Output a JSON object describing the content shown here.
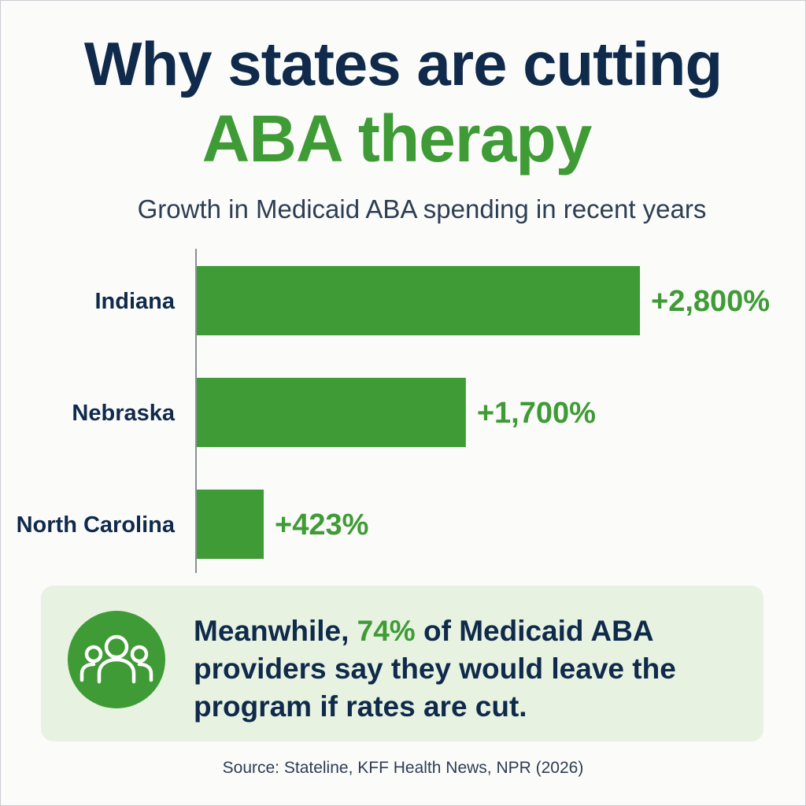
{
  "title": {
    "line1": "Why states are cutting",
    "line2": "ABA therapy"
  },
  "subtitle": "Growth in Medicaid ABA spending in recent years",
  "chart_data": {
    "type": "bar",
    "orientation": "horizontal",
    "title": "Growth in Medicaid ABA spending in recent years",
    "categories": [
      "Indiana",
      "Nebraska",
      "North Carolina"
    ],
    "values": [
      2800,
      1700,
      423
    ],
    "value_labels": [
      "+2,800%",
      "+1,700%",
      "+423%"
    ],
    "unit": "%",
    "xlim": [
      0,
      2800
    ],
    "grid": false,
    "legend": "none",
    "bar_color": "#3f9b35"
  },
  "callout": {
    "text_before": "Meanwhile, ",
    "highlight": "74%",
    "text_after": " of Medicaid ABA providers say they would leave the program if rates are cut.",
    "icon": "people-group-icon"
  },
  "source": "Source: Stateline, KFF Health News, NPR (2026)",
  "colors": {
    "navy": "#0f2a4a",
    "green": "#3f9b35",
    "callout_bg": "#e7f2e1"
  }
}
